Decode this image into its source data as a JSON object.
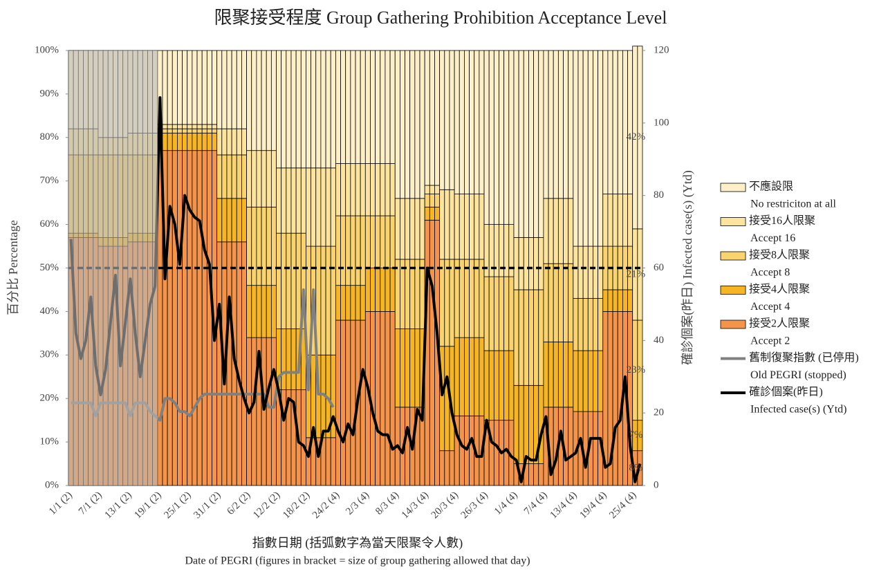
{
  "chart_data": {
    "type": "stacked_bar_line",
    "title": "限聚接受程度 Group Gathering Prohibition Acceptance Level",
    "y_label": "百分比 Percentage",
    "y2_label": "確診個案(昨日) Infected case(s) (Ytd)",
    "x_label": [
      "指數日期 (括弧數字為當天限聚令人數)",
      "Date of PEGRI (figures in bracket = size of group gathering allowed that day)"
    ],
    "categories": [
      "1/1 (2)",
      null,
      null,
      null,
      null,
      null,
      "7/1 (2)",
      null,
      null,
      null,
      null,
      null,
      "13/1 (2)",
      null,
      null,
      null,
      null,
      null,
      "19/1 (2)",
      null,
      null,
      null,
      null,
      null,
      "25/1 (2)",
      null,
      null,
      null,
      null,
      null,
      "31/1 (2)",
      null,
      null,
      null,
      null,
      null,
      "6/2 (2)",
      null,
      null,
      null,
      null,
      null,
      "12/2 (2)",
      null,
      null,
      null,
      null,
      null,
      "18/2 (2)",
      null,
      null,
      null,
      null,
      null,
      "24/2 (4)",
      null,
      null,
      null,
      null,
      null,
      "2/3 (4)",
      null,
      null,
      null,
      null,
      null,
      "8/3 (4)",
      null,
      null,
      null,
      null,
      null,
      "14/3 (4)",
      null,
      null,
      null,
      null,
      null,
      "20/3 (4)",
      null,
      null,
      null,
      null,
      null,
      "26/3 (4)",
      null,
      null,
      null,
      null,
      null,
      "1/4 (4)",
      null,
      null,
      null,
      null,
      null,
      "7/4 (4)",
      null,
      null,
      null,
      null,
      null,
      "13/4 (4)",
      null,
      null,
      null,
      null,
      null,
      "19/4 (4)",
      null,
      null,
      null,
      null,
      null,
      "25/4 (4)",
      null
    ],
    "ylim": [
      0,
      100
    ],
    "yticks": [
      {
        "value": 0,
        "label": "0%"
      },
      {
        "value": 10,
        "label": "10%"
      },
      {
        "value": 20,
        "label": "20%"
      },
      {
        "value": 30,
        "label": "30%"
      },
      {
        "value": 40,
        "label": "40%"
      },
      {
        "value": 50,
        "label": "50%"
      },
      {
        "value": 60,
        "label": "60%"
      },
      {
        "value": 70,
        "label": "70%"
      },
      {
        "value": 80,
        "label": "80%"
      },
      {
        "value": 90,
        "label": "90%"
      },
      {
        "value": 100,
        "label": "100%"
      }
    ],
    "y2lim": [
      0,
      120
    ],
    "y2ticks": [
      0,
      20,
      40,
      60,
      80,
      100,
      120
    ],
    "reference_line": 50,
    "series": [
      {
        "name": [
          "接受2人限聚",
          "Accept  2"
        ],
        "kind": "bar",
        "color": "#f4944a",
        "values": [
          57,
          57,
          57,
          57,
          57,
          57,
          55,
          55,
          55,
          55,
          55,
          55,
          56,
          56,
          56,
          56,
          56,
          56,
          77,
          77,
          77,
          77,
          77,
          77,
          77,
          77,
          77,
          77,
          77,
          77,
          56,
          56,
          56,
          56,
          56,
          56,
          34,
          34,
          34,
          34,
          34,
          34,
          22,
          22,
          22,
          22,
          22,
          22,
          11,
          11,
          11,
          11,
          11,
          11,
          38,
          38,
          38,
          38,
          38,
          38,
          40,
          40,
          40,
          40,
          40,
          40,
          18,
          18,
          18,
          18,
          18,
          18,
          61,
          61,
          61,
          8,
          8,
          8,
          16,
          16,
          16,
          16,
          16,
          16,
          15,
          15,
          15,
          15,
          15,
          15,
          5,
          5,
          5,
          5,
          5,
          5,
          18,
          18,
          18,
          18,
          18,
          18,
          17,
          17,
          17,
          17,
          17,
          17,
          40,
          40,
          40,
          40,
          40,
          40,
          8,
          8
        ],
        "value_labels": {
          "115": "8%"
        }
      },
      {
        "name": [
          "接受4人限聚",
          "Accept  4"
        ],
        "kind": "bar",
        "color": "#f6b623",
        "values": [
          1,
          1,
          1,
          1,
          1,
          1,
          2,
          2,
          2,
          2,
          2,
          2,
          2,
          2,
          2,
          2,
          2,
          2,
          4,
          4,
          4,
          4,
          4,
          4,
          4,
          4,
          4,
          4,
          4,
          4,
          10,
          10,
          10,
          10,
          10,
          10,
          12,
          12,
          12,
          12,
          12,
          12,
          14,
          14,
          14,
          14,
          14,
          14,
          19,
          19,
          19,
          19,
          19,
          19,
          8,
          8,
          8,
          8,
          8,
          8,
          10,
          10,
          10,
          10,
          10,
          10,
          18,
          18,
          18,
          18,
          18,
          18,
          3,
          3,
          3,
          24,
          24,
          24,
          18,
          18,
          18,
          18,
          18,
          18,
          16,
          16,
          16,
          16,
          16,
          16,
          18,
          18,
          18,
          18,
          18,
          18,
          15,
          15,
          15,
          15,
          15,
          15,
          14,
          14,
          14,
          14,
          14,
          14,
          5,
          5,
          5,
          5,
          5,
          5,
          7,
          7
        ],
        "value_labels": {
          "115": "7%"
        }
      },
      {
        "name": [
          "接受8人限聚",
          "Accept  8"
        ],
        "kind": "bar",
        "color": "#f9d36e",
        "values": [
          18,
          18,
          18,
          18,
          18,
          18,
          19,
          19,
          19,
          19,
          19,
          19,
          18,
          18,
          18,
          18,
          18,
          18,
          1,
          1,
          1,
          1,
          1,
          1,
          1,
          1,
          1,
          1,
          1,
          1,
          10,
          10,
          10,
          10,
          10,
          10,
          18,
          18,
          18,
          18,
          18,
          18,
          22,
          22,
          22,
          22,
          22,
          22,
          25,
          25,
          25,
          25,
          25,
          25,
          16,
          16,
          16,
          16,
          16,
          16,
          12,
          12,
          12,
          12,
          12,
          12,
          16,
          16,
          16,
          16,
          16,
          16,
          3,
          3,
          3,
          20,
          20,
          20,
          18,
          18,
          18,
          18,
          18,
          18,
          17,
          17,
          17,
          17,
          17,
          17,
          22,
          22,
          22,
          22,
          22,
          22,
          18,
          18,
          18,
          18,
          18,
          18,
          12,
          12,
          12,
          12,
          12,
          12,
          10,
          10,
          10,
          10,
          10,
          10,
          23,
          23
        ],
        "value_labels": {
          "115": "23%"
        }
      },
      {
        "name": [
          "接受16人限聚",
          "Accept  16"
        ],
        "kind": "bar",
        "color": "#fce49e",
        "values": [
          6,
          6,
          6,
          6,
          6,
          6,
          4,
          4,
          4,
          4,
          4,
          4,
          5,
          5,
          5,
          5,
          5,
          5,
          1,
          1,
          1,
          1,
          1,
          1,
          1,
          1,
          1,
          1,
          1,
          1,
          6,
          6,
          6,
          6,
          6,
          6,
          13,
          13,
          13,
          13,
          13,
          13,
          15,
          15,
          15,
          15,
          15,
          15,
          18,
          18,
          18,
          18,
          18,
          18,
          12,
          12,
          12,
          12,
          12,
          12,
          12,
          12,
          12,
          12,
          12,
          12,
          14,
          14,
          14,
          14,
          14,
          14,
          2,
          2,
          2,
          16,
          16,
          16,
          15,
          15,
          15,
          15,
          15,
          15,
          12,
          12,
          12,
          12,
          12,
          12,
          12,
          12,
          12,
          12,
          12,
          12,
          15,
          15,
          15,
          15,
          15,
          15,
          12,
          12,
          12,
          12,
          12,
          12,
          12,
          12,
          12,
          12,
          12,
          12,
          21,
          21
        ],
        "value_labels": {
          "115": "21%"
        }
      },
      {
        "name": [
          "不應設限",
          "No restriciton at all"
        ],
        "kind": "bar",
        "color": "#fdf0c8",
        "values": [
          18,
          18,
          18,
          18,
          18,
          18,
          20,
          20,
          20,
          20,
          20,
          20,
          19,
          19,
          19,
          19,
          19,
          19,
          17,
          17,
          17,
          17,
          17,
          17,
          17,
          17,
          17,
          17,
          17,
          17,
          18,
          18,
          18,
          18,
          18,
          18,
          23,
          23,
          23,
          23,
          23,
          23,
          27,
          27,
          27,
          27,
          27,
          27,
          27,
          27,
          27,
          27,
          27,
          27,
          26,
          26,
          26,
          26,
          26,
          26,
          26,
          26,
          26,
          26,
          26,
          26,
          34,
          34,
          34,
          34,
          34,
          34,
          31,
          31,
          31,
          32,
          32,
          32,
          33,
          33,
          33,
          33,
          33,
          33,
          40,
          40,
          40,
          40,
          40,
          40,
          43,
          43,
          43,
          43,
          43,
          43,
          34,
          34,
          34,
          34,
          34,
          34,
          45,
          45,
          45,
          45,
          45,
          45,
          33,
          33,
          33,
          33,
          33,
          33,
          42,
          42
        ],
        "value_labels": {
          "115": "42%"
        }
      },
      {
        "name": [
          "舊制復聚指數 (已停用)",
          "Old PEGRI (stopped)"
        ],
        "kind": "line",
        "color": "#808080",
        "values": [
          19,
          19,
          19,
          19,
          19,
          16,
          19,
          19,
          19,
          19,
          19,
          19,
          16,
          19,
          19,
          19,
          17,
          16,
          15,
          20,
          20,
          19,
          17,
          17,
          16,
          18,
          20,
          21,
          21,
          21,
          21,
          21,
          21,
          21,
          21,
          21,
          21,
          21,
          21,
          21,
          18,
          18,
          25,
          26,
          26,
          26,
          26,
          45,
          22,
          45,
          21,
          21,
          20,
          18,
          null,
          null,
          null,
          null,
          null,
          null,
          null,
          null,
          null,
          null,
          null,
          null,
          null,
          null,
          null,
          null,
          null,
          null,
          null,
          null,
          null,
          null,
          null,
          null,
          null,
          null,
          null,
          null,
          null,
          null,
          null,
          null,
          null,
          null,
          null,
          null,
          null,
          null,
          null,
          null,
          null,
          null,
          null,
          null,
          null,
          null,
          null,
          null,
          null,
          null,
          null,
          null,
          null,
          null,
          null,
          null,
          null,
          null,
          null,
          null,
          null,
          null
        ]
      },
      {
        "name": [
          "確診個案(昨日)",
          "Infected case(s) (Ytd)"
        ],
        "kind": "line",
        "axis": "y2",
        "color": "#000000",
        "values": [
          68,
          42,
          35,
          40,
          52,
          33,
          25,
          32,
          45,
          58,
          33,
          45,
          57,
          42,
          30,
          40,
          50,
          55,
          107,
          57,
          77,
          72,
          61,
          80,
          76,
          74,
          73,
          65,
          61,
          40,
          50,
          28,
          52,
          35,
          29,
          24,
          20,
          23,
          37,
          21,
          27,
          32,
          26,
          18,
          24,
          23,
          12,
          11,
          8,
          16,
          8,
          15,
          15,
          19,
          15,
          12,
          17,
          14,
          24,
          32,
          27,
          20,
          15,
          14,
          14,
          10,
          11,
          9,
          16,
          10,
          21,
          18,
          60,
          55,
          42,
          25,
          30,
          20,
          14,
          11,
          10,
          13,
          8,
          8,
          18,
          12,
          11,
          9,
          10,
          8,
          7,
          1,
          8,
          7,
          7,
          14,
          19,
          3,
          7,
          15,
          7,
          8,
          9,
          13,
          5,
          13,
          13,
          13,
          5,
          6,
          16,
          18,
          30,
          11,
          1,
          6
        ]
      }
    ]
  }
}
